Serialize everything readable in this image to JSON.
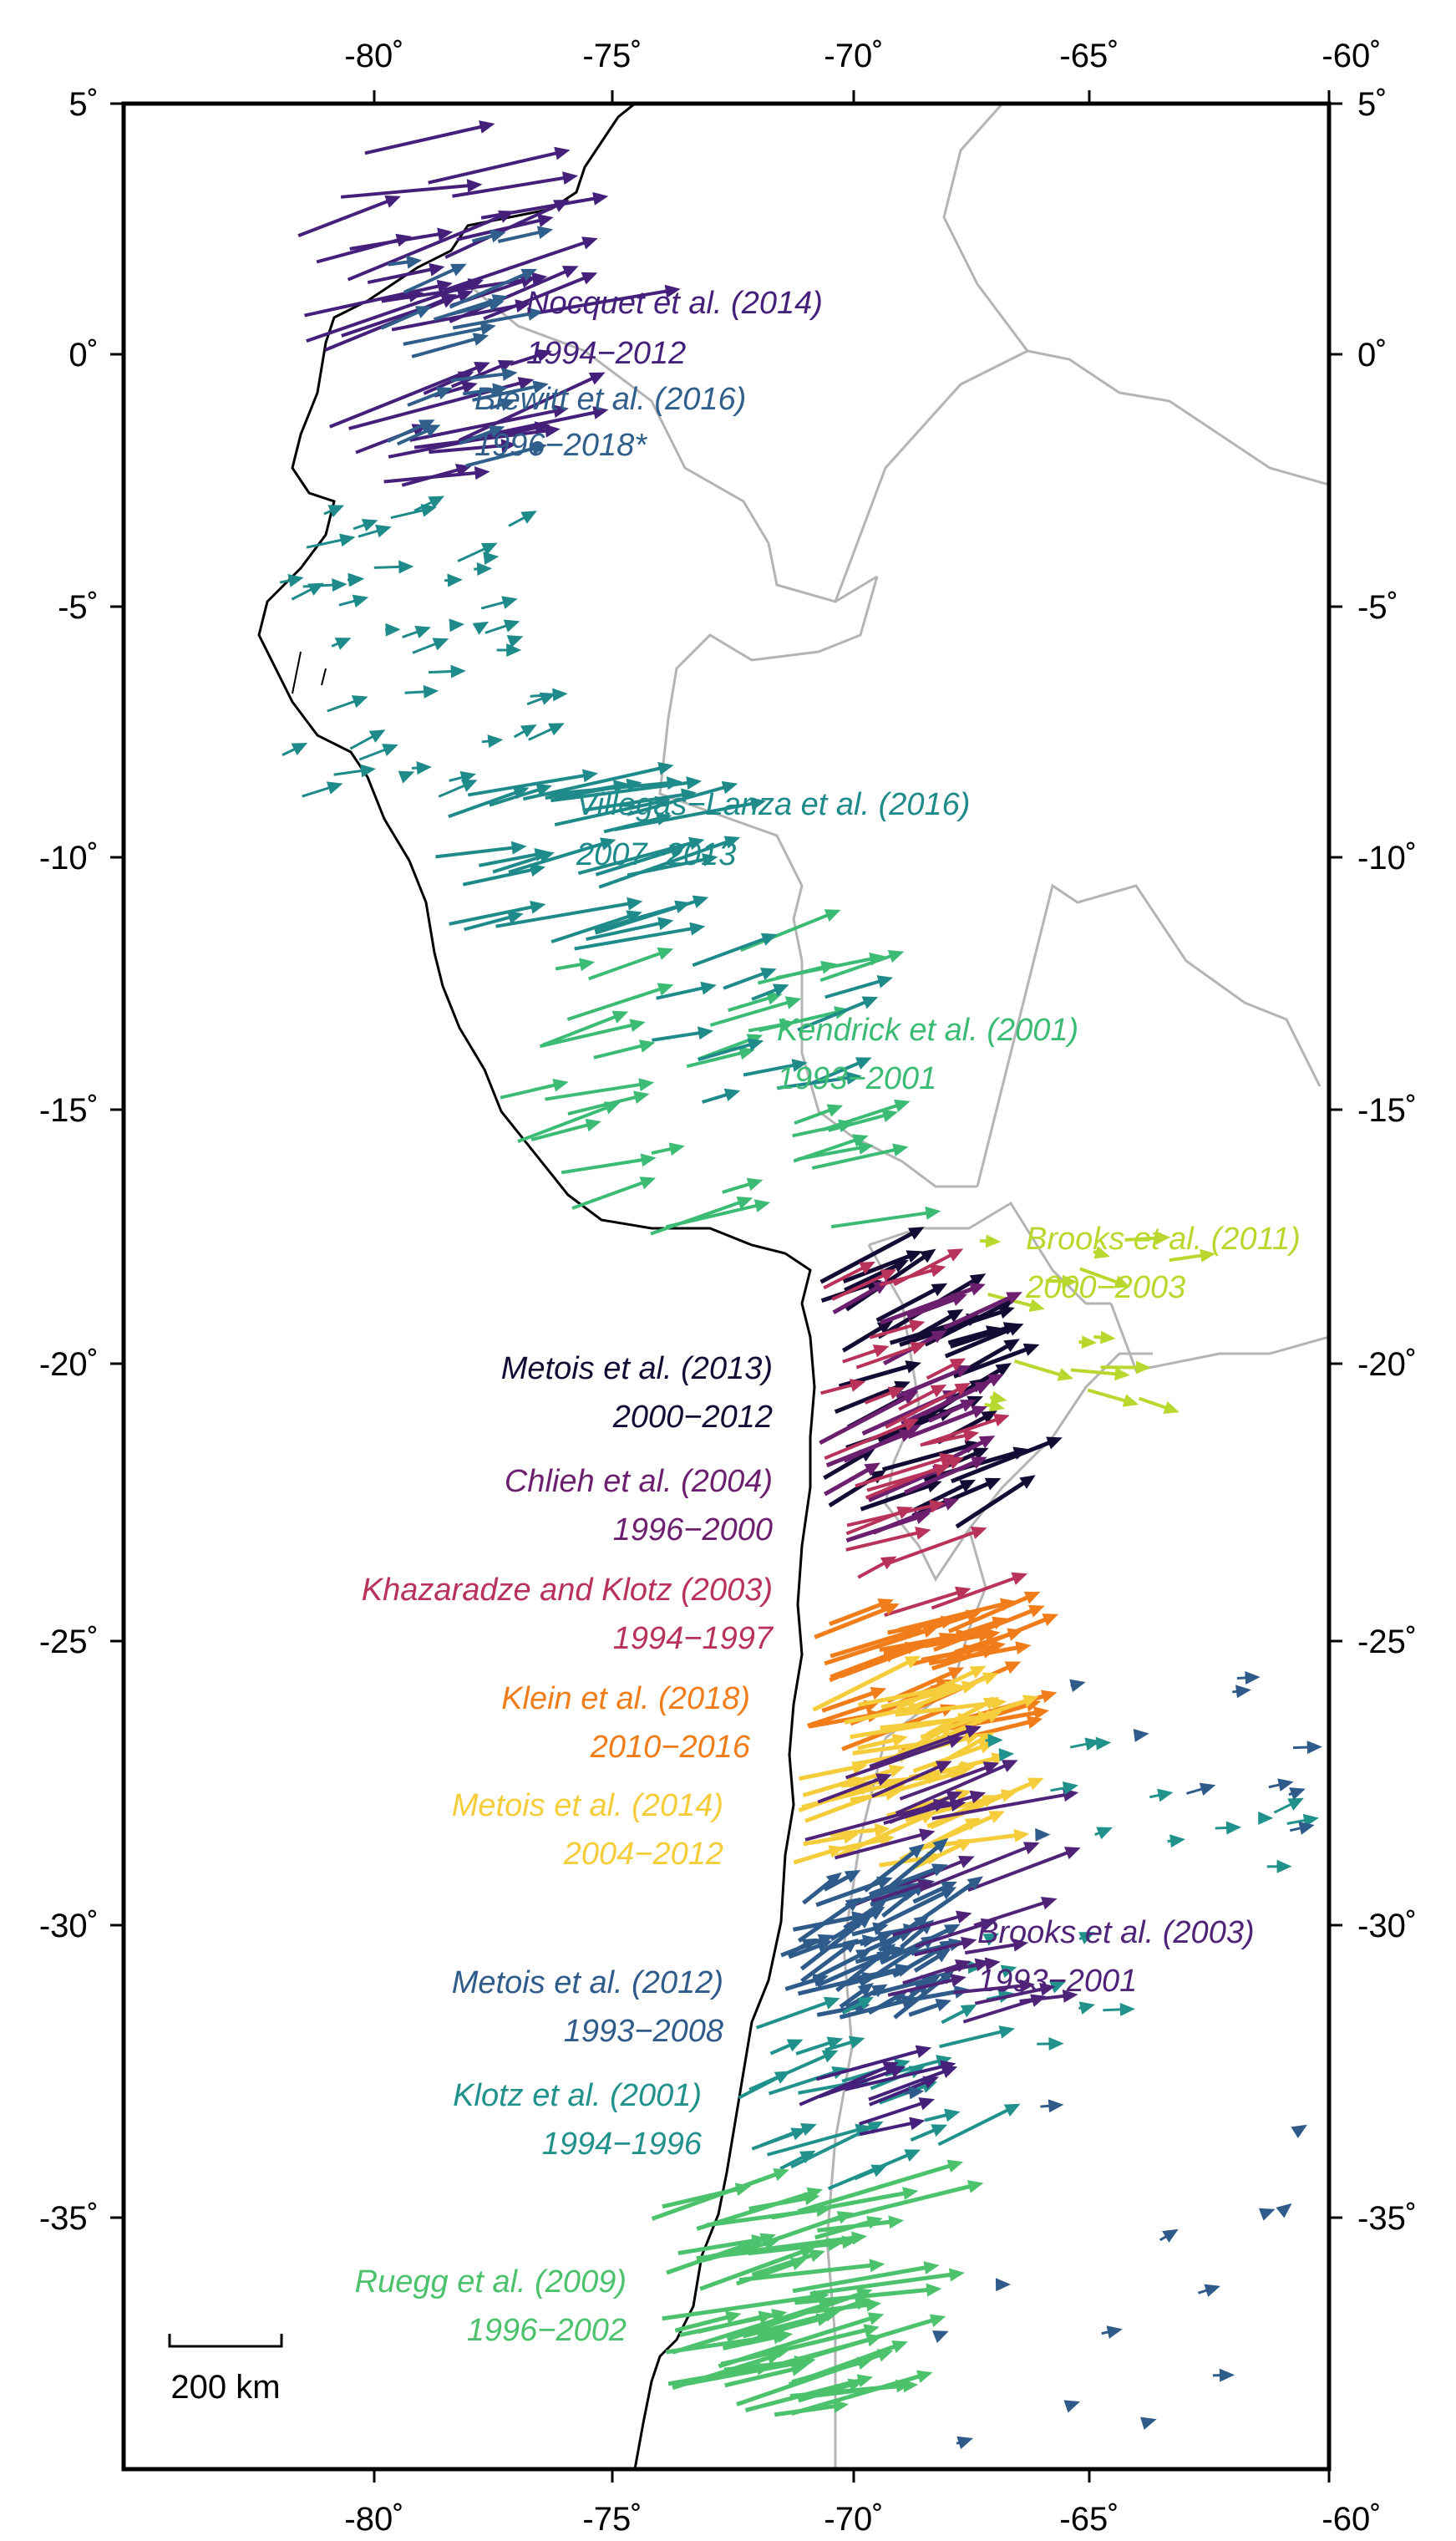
{
  "map": {
    "lon_ticks": [
      "-80˚",
      "-75˚",
      "-70˚",
      "-65˚",
      "-60˚"
    ],
    "lat_ticks": [
      "5˚",
      "0˚",
      "-5˚",
      "-10˚",
      "-15˚",
      "-20˚",
      "-25˚",
      "-30˚",
      "-35˚"
    ],
    "scale_bar": "200 km",
    "colors": {
      "frame": "#000000",
      "coastline": "#000000",
      "borders": "#b4b4b4",
      "nocquet": "#44207a",
      "blewitt": "#2f5f8a",
      "villegas": "#1f8a8a",
      "kendrick": "#3cbb75",
      "brooks2011": "#b8d82e",
      "metois2013": "#140b34",
      "chlieh": "#6b1f6e",
      "khazaradze": "#b8325a",
      "klein": "#f07d1a",
      "metois2014": "#f5cd3a",
      "brooks2003": "#4e2378",
      "metois2012": "#2f5b8a",
      "klotz": "#21918c",
      "ruegg": "#4cc26c"
    }
  },
  "datasets": [
    {
      "id": "nocquet",
      "name": "Nocquet et al. (2014)",
      "period": "1994−2012"
    },
    {
      "id": "blewitt",
      "name": "Blewitt et al. (2016)",
      "period": "1996−2018*"
    },
    {
      "id": "villegas",
      "name": "Villegas−Lanza et al. (2016)",
      "period": "2007−2013"
    },
    {
      "id": "kendrick",
      "name": "Kendrick et al. (2001)",
      "period": "1993−2001"
    },
    {
      "id": "brooks2011",
      "name": "Brooks et al. (2011)",
      "period": "2000−2003"
    },
    {
      "id": "metois2013",
      "name": "Metois et al. (2013)",
      "period": "2000−2012"
    },
    {
      "id": "chlieh",
      "name": "Chlieh et al. (2004)",
      "period": "1996−2000"
    },
    {
      "id": "khazaradze",
      "name": "Khazaradze and Klotz (2003)",
      "period": "1994−1997"
    },
    {
      "id": "klein",
      "name": "Klein et al. (2018)",
      "period": "2010−2016"
    },
    {
      "id": "metois2014",
      "name": "Metois et al. (2014)",
      "period": "2004−2012"
    },
    {
      "id": "brooks2003",
      "name": "Brooks et al. (2003)",
      "period": "1993−2001"
    },
    {
      "id": "metois2012",
      "name": "Metois et al. (2012)",
      "period": "1993−2008"
    },
    {
      "id": "klotz",
      "name": "Klotz et al. (2001)",
      "period": "1994−1996"
    },
    {
      "id": "ruegg",
      "name": "Ruegg et al. (2009)",
      "period": "1996−2002"
    }
  ]
}
